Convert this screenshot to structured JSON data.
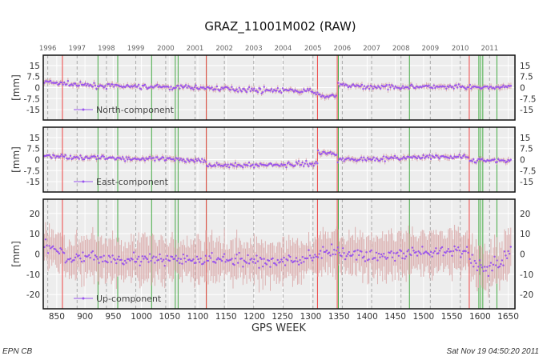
{
  "footer": {
    "left": "EPN CB",
    "right": "Sat Nov 19 04:50:20 2011"
  },
  "colors": {
    "panel_bg": "#ededed",
    "grid": "#ffffff",
    "year_line": "#aaaaaa",
    "red_line": "#ee4444",
    "green_line": "#44aa44",
    "error_bar": "#dcb0b0",
    "point": "#9955ee"
  },
  "chart_data": {
    "type": "scatter",
    "title": "GRAZ_11001M002 (RAW)",
    "xlabel": "GPS WEEK",
    "ylabel": "[mm]",
    "xlim": [
      826,
      1662
    ],
    "x_ticks": [
      850,
      900,
      950,
      1000,
      1050,
      1100,
      1150,
      1200,
      1250,
      1300,
      1350,
      1400,
      1450,
      1500,
      1550,
      1600,
      1650
    ],
    "year_labels": [
      "1996",
      "1997",
      "1998",
      "1999",
      "2000",
      "2001",
      "2002",
      "2003",
      "2004",
      "2005",
      "2006",
      "2007",
      "2008",
      "2009",
      "2010",
      "2011"
    ],
    "year_weeks": [
      834,
      886,
      938,
      990,
      1043,
      1095,
      1147,
      1199,
      1251,
      1304,
      1356,
      1408,
      1460,
      1512,
      1565,
      1617
    ],
    "red_line_weeks": [
      860,
      1115,
      1312,
      1347,
      1581
    ],
    "green_line_weeks": [
      923,
      958,
      1018,
      1060,
      1065,
      1115,
      1349,
      1475,
      1598,
      1601,
      1605,
      1630
    ],
    "grid": true,
    "panels": [
      {
        "name": "North-component",
        "ylim": [
          -22,
          22
        ],
        "y_ticks": [
          15,
          7.5,
          0,
          -7.5,
          -15
        ],
        "y_tick_labels": [
          "15",
          "7.5",
          "0",
          "-7.5",
          "-15"
        ],
        "legend": "bottom-left",
        "segments": [
          {
            "x": [
              828,
              850,
              900,
              1000,
              1100,
              1200,
              1300,
              1312
            ],
            "y": [
              4,
              3,
              1.5,
              0.5,
              0,
              -1.5,
              -2.5,
              -3
            ]
          },
          {
            "x": [
              1312,
              1325,
              1347
            ],
            "y": [
              -5,
              -6,
              -5
            ]
          },
          {
            "x": [
              1349,
              1400,
              1500,
              1600,
              1655
            ],
            "y": [
              1.5,
              0.5,
              0.5,
              0,
              0.5
            ]
          }
        ],
        "noise": 1.3,
        "error": 1.6
      },
      {
        "name": "East-component",
        "ylim": [
          -22,
          22
        ],
        "y_ticks": [
          15,
          7.5,
          0,
          -7.5,
          -15
        ],
        "y_tick_labels": [
          "15",
          "7.5",
          "0",
          "-7.5",
          "-15"
        ],
        "legend": "bottom-left",
        "segments": [
          {
            "x": [
              828,
              900,
              1000,
              1115
            ],
            "y": [
              2.5,
              1.5,
              0.5,
              -0.5
            ]
          },
          {
            "x": [
              1116,
              1150,
              1250,
              1312
            ],
            "y": [
              -3.5,
              -4,
              -3.5,
              -2.5
            ]
          },
          {
            "x": [
              1313,
              1347
            ],
            "y": [
              5,
              4
            ]
          },
          {
            "x": [
              1348,
              1400,
              1500,
              1580
            ],
            "y": [
              0,
              0.5,
              1.5,
              2
            ]
          },
          {
            "x": [
              1582,
              1620,
              1655
            ],
            "y": [
              -1,
              -0.5,
              -1
            ]
          }
        ],
        "noise": 1.3,
        "error": 1.6
      },
      {
        "name": "Up-component",
        "ylim": [
          -27,
          27
        ],
        "y_ticks": [
          20,
          10,
          0,
          -10,
          -20
        ],
        "y_tick_labels": [
          "20",
          "10",
          "0",
          "-10",
          "-20"
        ],
        "legend": "bottom-left",
        "segments": [
          {
            "x": [
              828,
              845,
              870,
              950,
              1050,
              1150,
              1250,
              1312
            ],
            "y": [
              5,
              2,
              -2,
              -2,
              -3,
              -3,
              -4,
              -1
            ]
          },
          {
            "x": [
              1313,
              1347,
              1400,
              1500,
              1580
            ],
            "y": [
              0,
              1,
              -1,
              0,
              2
            ]
          },
          {
            "x": [
              1582,
              1610,
              1640,
              1655
            ],
            "y": [
              -3,
              -7,
              -3,
              2
            ]
          }
        ],
        "noise": 2.6,
        "error": 9
      }
    ]
  }
}
